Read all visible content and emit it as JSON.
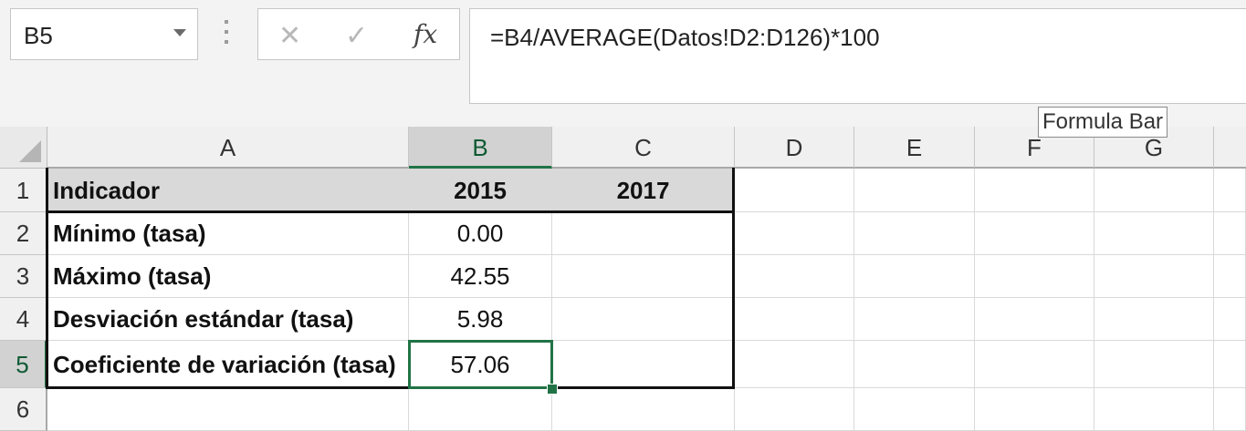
{
  "name_box": {
    "value": "B5"
  },
  "formula_bar": {
    "formula": "=B4/AVERAGE(Datos!D2:D126)*100",
    "cancel_icon": "close-icon",
    "enter_icon": "check-icon",
    "fx_label": "fx"
  },
  "tooltip": {
    "text": "Formula Bar"
  },
  "columns": [
    "A",
    "B",
    "C",
    "D",
    "E",
    "F",
    "G"
  ],
  "rows": [
    "1",
    "2",
    "3",
    "4",
    "5",
    "6"
  ],
  "table": {
    "header": {
      "indicator": "Indicador",
      "y2015": "2015",
      "y2017": "2017"
    },
    "data": [
      {
        "label": "Mínimo (tasa)",
        "v2015": "0.00",
        "v2017": ""
      },
      {
        "label": "Máximo (tasa)",
        "v2015": "42.55",
        "v2017": ""
      },
      {
        "label": "Desviación estándar (tasa)",
        "v2015": "5.98",
        "v2017": ""
      },
      {
        "label": "Coeficiente de variación  (tasa)",
        "v2015": "57.06",
        "v2017": ""
      }
    ]
  },
  "active_cell": "B5",
  "colors": {
    "accent": "#217346",
    "header_fill": "#d9d9d9"
  }
}
